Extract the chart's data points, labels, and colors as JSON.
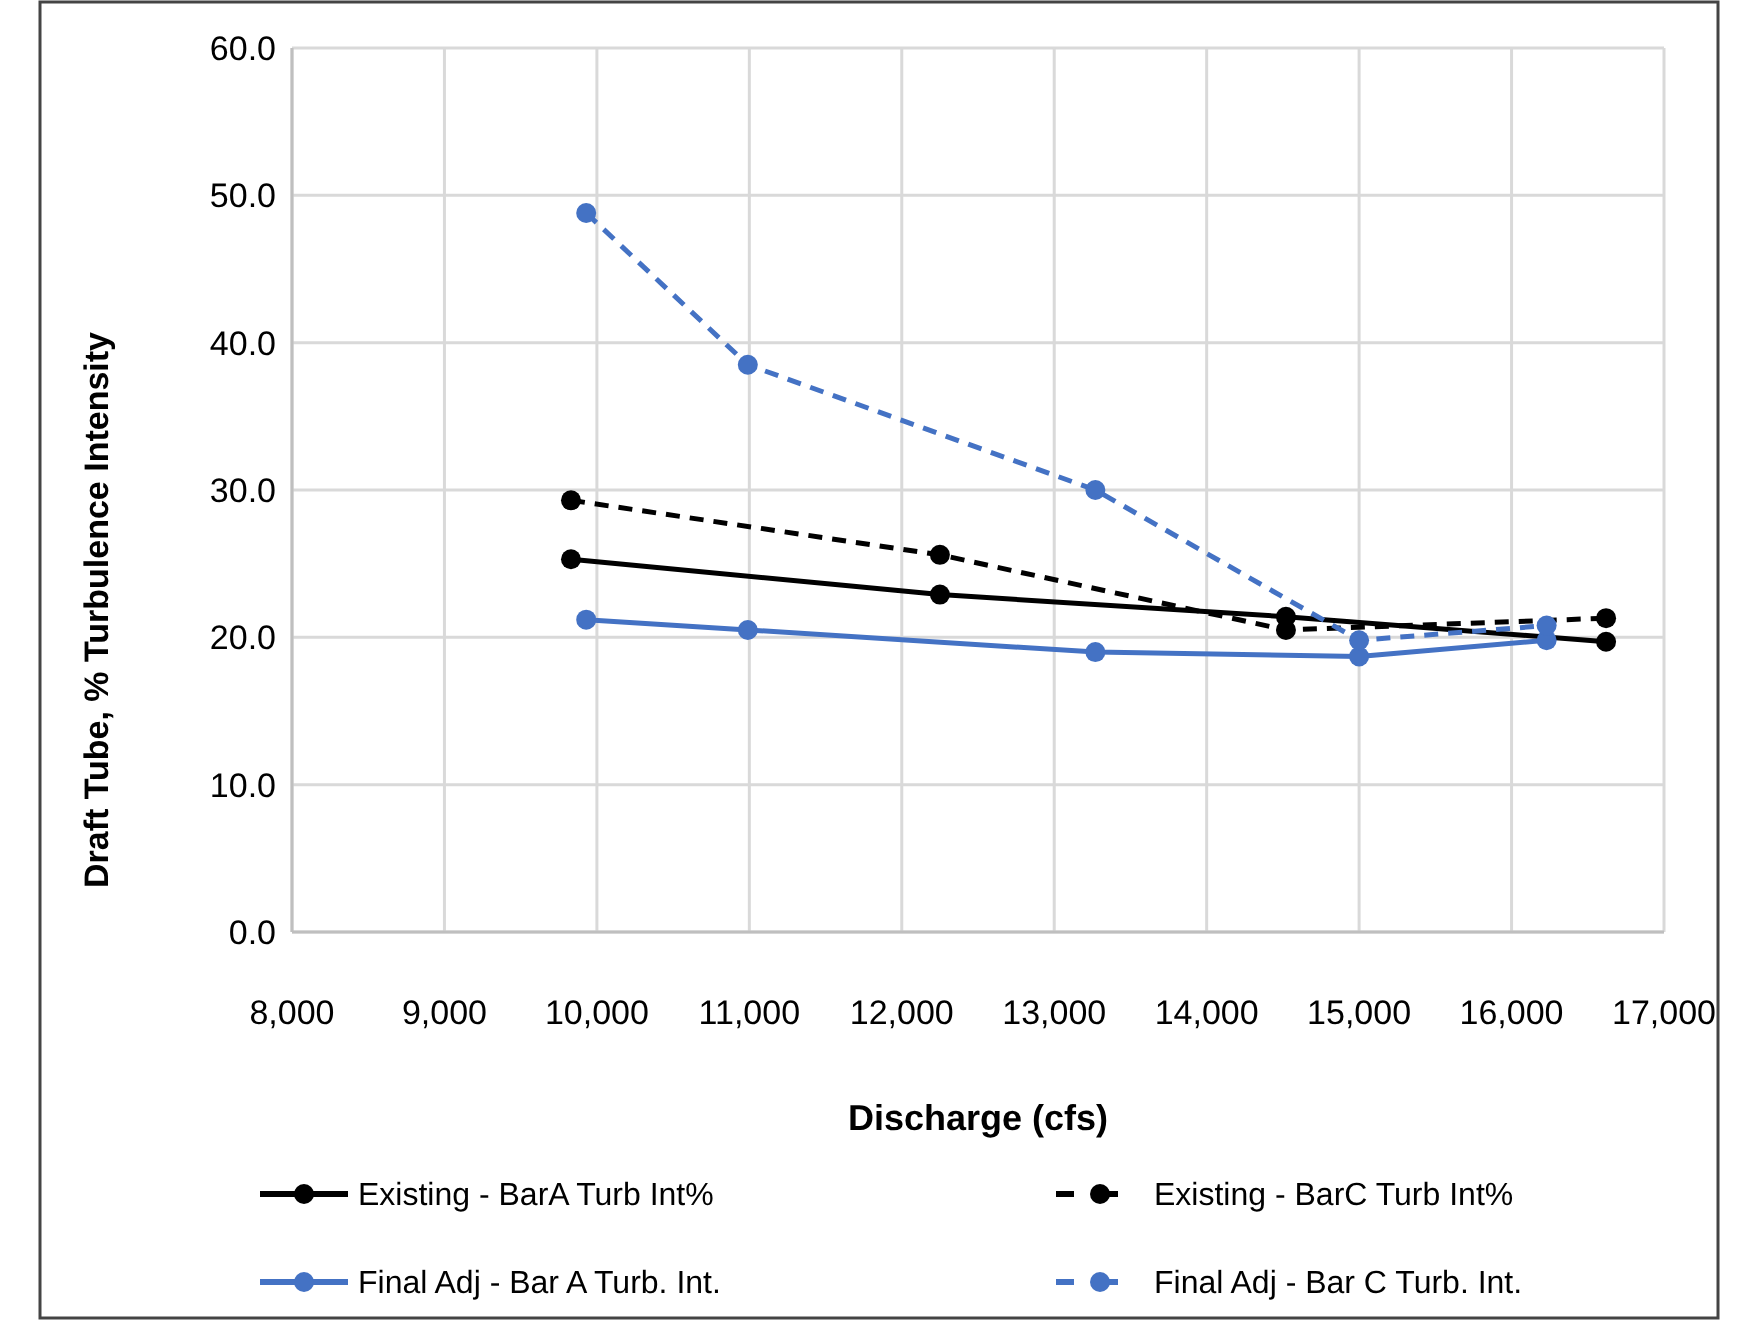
{
  "chart_data": {
    "type": "line",
    "xlabel": "Discharge (cfs)",
    "ylabel": "Draft Tube, % Turbulence Intensity",
    "xlim": [
      8000,
      17000
    ],
    "xticks": [
      {
        "value": 8000,
        "label": "8,000"
      },
      {
        "value": 9000,
        "label": "9,000"
      },
      {
        "value": 10000,
        "label": "10,000"
      },
      {
        "value": 11000,
        "label": "11,000"
      },
      {
        "value": 12000,
        "label": "12,000"
      },
      {
        "value": 13000,
        "label": "13,000"
      },
      {
        "value": 14000,
        "label": "14,000"
      },
      {
        "value": 15000,
        "label": "15,000"
      },
      {
        "value": 16000,
        "label": "16,000"
      },
      {
        "value": 17000,
        "label": "17,000"
      }
    ],
    "ylim": [
      0,
      60
    ],
    "yticks": [
      {
        "value": 0,
        "label": "0.0"
      },
      {
        "value": 10,
        "label": "10.0"
      },
      {
        "value": 20,
        "label": "20.0"
      },
      {
        "value": 30,
        "label": "30.0"
      },
      {
        "value": 40,
        "label": "40.0"
      },
      {
        "value": 50,
        "label": "50.0"
      },
      {
        "value": 60,
        "label": "60.0"
      }
    ],
    "grid": true,
    "legend": "bottom",
    "marker": "circle",
    "series": [
      {
        "name": "Existing - BarA Turb Int%",
        "color": "#000000",
        "line_style": "solid",
        "x": [
          9830,
          12250,
          14520,
          16620
        ],
        "values": [
          25.3,
          22.9,
          21.4,
          19.7
        ]
      },
      {
        "name": "Existing - BarC Turb Int%",
        "color": "#000000",
        "line_style": "dashed",
        "x": [
          9830,
          12250,
          14520,
          16620
        ],
        "values": [
          29.3,
          25.6,
          20.5,
          21.3
        ]
      },
      {
        "name": "Final Adj - Bar A Turb. Int.",
        "color": "#4472c4",
        "line_style": "solid",
        "x": [
          9930,
          10990,
          13270,
          15000,
          16230
        ],
        "values": [
          21.2,
          20.5,
          19.0,
          18.7,
          19.8
        ]
      },
      {
        "name": "Final Adj - Bar C Turb. Int.",
        "color": "#4472c4",
        "line_style": "dashed",
        "x": [
          9930,
          10990,
          13270,
          15000,
          16230
        ],
        "values": [
          48.8,
          38.5,
          30.0,
          19.8,
          20.8
        ]
      }
    ]
  }
}
